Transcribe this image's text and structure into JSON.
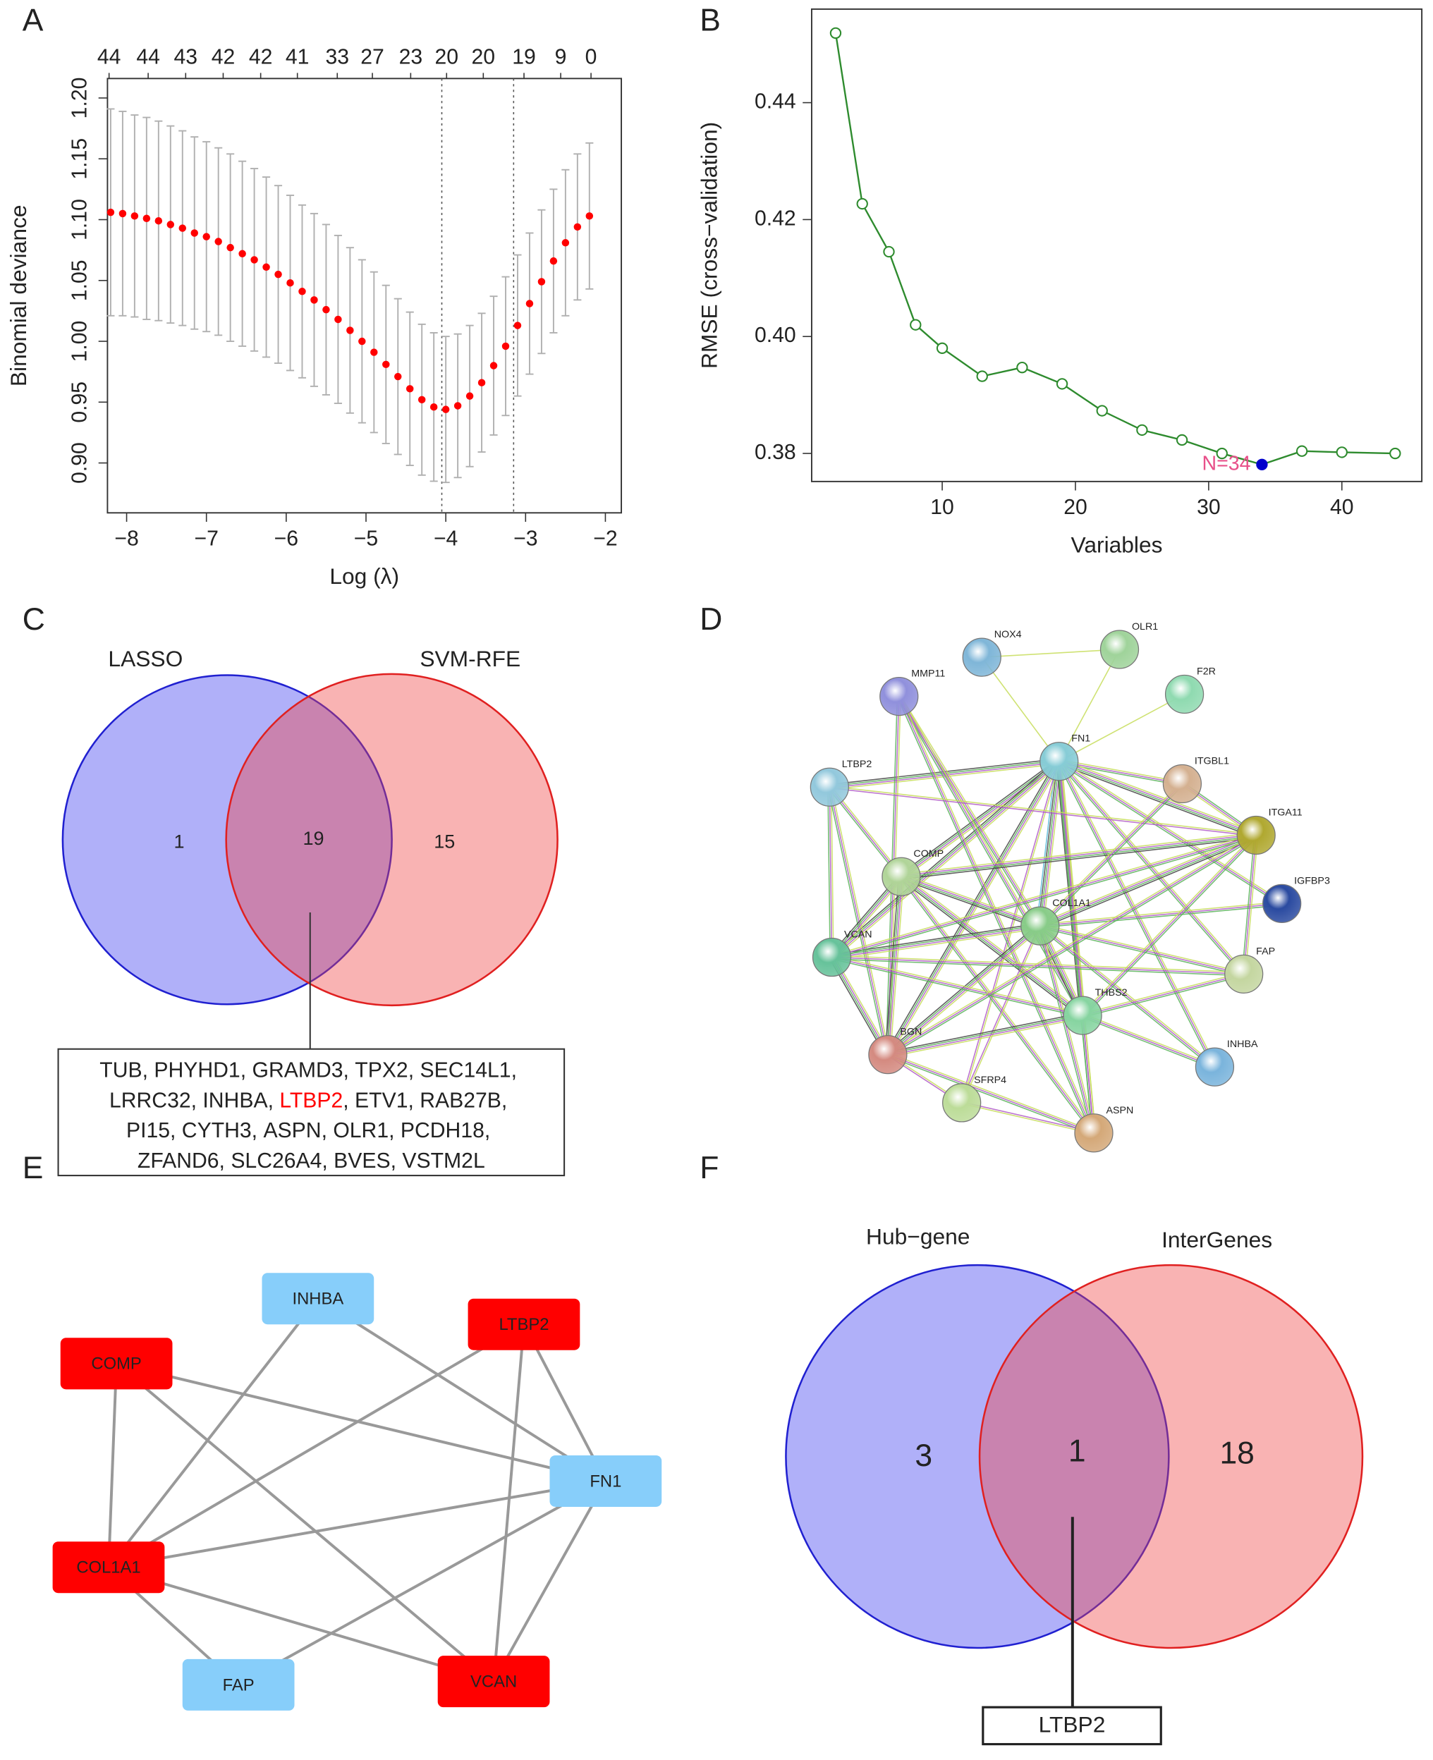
{
  "panel_labels": [
    "A",
    "B",
    "C",
    "D",
    "E",
    "F"
  ],
  "chart_data": [
    {
      "type": "errorbar",
      "xlabel": "Log (λ)",
      "ylabel": "Binomial deviance",
      "x": [
        -8.2,
        -8.05,
        -7.9,
        -7.75,
        -7.6,
        -7.45,
        -7.3,
        -7.15,
        -7.0,
        -6.85,
        -6.7,
        -6.55,
        -6.4,
        -6.25,
        -6.1,
        -5.95,
        -5.8,
        -5.65,
        -5.5,
        -5.35,
        -5.2,
        -5.05,
        -4.9,
        -4.75,
        -4.6,
        -4.45,
        -4.3,
        -4.15,
        -4.0,
        -3.85,
        -3.7,
        -3.55,
        -3.4,
        -3.25,
        -3.1,
        -2.95,
        -2.8,
        -2.65,
        -2.5,
        -2.35,
        -2.2
      ],
      "values": [
        1.106,
        1.105,
        1.103,
        1.101,
        1.099,
        1.096,
        1.093,
        1.089,
        1.086,
        1.082,
        1.077,
        1.072,
        1.067,
        1.061,
        1.055,
        1.048,
        1.041,
        1.034,
        1.026,
        1.018,
        1.009,
        1.0,
        0.991,
        0.981,
        0.971,
        0.961,
        0.952,
        0.946,
        0.944,
        0.947,
        0.955,
        0.966,
        0.98,
        0.996,
        1.013,
        1.031,
        1.049,
        1.066,
        1.081,
        1.094,
        1.103
      ],
      "errors": [
        0.085,
        0.084,
        0.083,
        0.083,
        0.082,
        0.081,
        0.08,
        0.079,
        0.078,
        0.077,
        0.077,
        0.076,
        0.075,
        0.074,
        0.073,
        0.072,
        0.071,
        0.071,
        0.07,
        0.069,
        0.068,
        0.067,
        0.066,
        0.065,
        0.064,
        0.063,
        0.062,
        0.061,
        0.06,
        0.059,
        0.058,
        0.057,
        0.057,
        0.057,
        0.058,
        0.058,
        0.059,
        0.059,
        0.06,
        0.06,
        0.06
      ],
      "color": "#ff0000",
      "error_color": "#b0b0b0",
      "xlim": [
        -8.24,
        -1.8
      ],
      "ylim": [
        0.859,
        1.216
      ],
      "xticks": [
        {
          "value": -8,
          "label": "−8"
        },
        {
          "value": -7,
          "label": "−7"
        },
        {
          "value": -6,
          "label": "−6"
        },
        {
          "value": -5,
          "label": "−5"
        },
        {
          "value": -4,
          "label": "−4"
        },
        {
          "value": -3,
          "label": "−3"
        },
        {
          "value": -2,
          "label": "−2"
        }
      ],
      "yticks": [
        {
          "value": 0.9,
          "label": "0.90"
        },
        0.95,
        {
          "value": 1,
          "label": "1.00"
        },
        1.05,
        {
          "value": 1.1,
          "label": "1.10"
        },
        1.15,
        {
          "value": 1.2,
          "label": "1.20"
        }
      ],
      "top_ticks": [
        {
          "value": -8.22,
          "label": "44"
        },
        {
          "value": -7.73,
          "label": "44"
        },
        {
          "value": -7.26,
          "label": "43"
        },
        {
          "value": -6.79,
          "label": "42"
        },
        {
          "value": -6.32,
          "label": "42"
        },
        {
          "value": -5.86,
          "label": "41"
        },
        {
          "value": -5.36,
          "label": "33"
        },
        {
          "value": -4.92,
          "label": "27"
        },
        {
          "value": -4.44,
          "label": "23"
        },
        {
          "value": -3.99,
          "label": "20"
        },
        {
          "value": -3.53,
          "label": "20"
        },
        {
          "value": -3.02,
          "label": "19"
        },
        {
          "value": -2.56,
          "label": "9"
        },
        {
          "value": -2.18,
          "label": "0"
        }
      ],
      "vlines": [
        -4.05,
        -3.15
      ]
    },
    {
      "type": "line",
      "xlabel": "Variables",
      "ylabel": "RMSE (cross−validation)",
      "x": [
        2,
        4,
        6,
        8,
        10,
        13,
        16,
        19,
        22,
        25,
        28,
        31,
        34,
        37,
        40,
        44
      ],
      "values": [
        0.4519,
        0.4227,
        0.4145,
        0.402,
        0.398,
        0.3932,
        0.3947,
        0.3919,
        0.3873,
        0.384,
        0.3823,
        0.38,
        0.3781,
        0.3804,
        0.3802,
        0.38
      ],
      "color": "#2e8b2e",
      "highlight_index": 12,
      "highlight_color": "#0000cc",
      "annotation": "N=34",
      "annotation_color": "#e8508a",
      "xlim": [
        0.2,
        46
      ],
      "ylim": [
        0.3752,
        0.456
      ],
      "xticks": [
        10,
        20,
        30,
        40
      ],
      "yticks": [
        0.38,
        {
          "value": 0.4,
          "label": "0.40"
        },
        0.42,
        0.44
      ]
    }
  ],
  "venn_c": {
    "sets": [
      {
        "name": "LASSO",
        "color": "#3a3af0",
        "stroke": "#2020d0"
      },
      {
        "name": "SVM-RFE",
        "color": "#f04040",
        "stroke": "#e02020"
      }
    ],
    "counts": [
      1,
      19,
      15
    ],
    "gene_rows": [
      [
        "TUB",
        "PHYHD1",
        "GRAMD3",
        "TPX2",
        "SEC14L1"
      ],
      [
        "LRRC32",
        "INHBA",
        "LTBP2",
        "ETV1",
        "RAB27B"
      ],
      [
        "PI15",
        "CYTH3",
        "ASPN",
        "OLR1",
        "PCDH18"
      ],
      [
        "ZFAND6",
        "SLC26A4",
        "BVES",
        "VSTM2L"
      ]
    ],
    "separator": ", ",
    "highlight": {
      "row": 1,
      "col": 2,
      "color": "#ff0000"
    }
  },
  "network_d": {
    "nodes": [
      {
        "label": "NOX4",
        "color": "#7fb6d8"
      },
      {
        "label": "OLR1",
        "color": "#9fd39a"
      },
      {
        "label": "F2R",
        "color": "#8fdab0"
      },
      {
        "label": "MMP11",
        "color": "#9090dc"
      },
      {
        "label": "FN1",
        "color": "#86ccd6"
      },
      {
        "label": "ITGBL1",
        "color": "#d4b090"
      },
      {
        "label": "LTBP2",
        "color": "#92c8dc"
      },
      {
        "label": "ITGA11",
        "color": "#b0a830"
      },
      {
        "label": "COMP",
        "color": "#b0d498"
      },
      {
        "label": "IGFBP3",
        "color": "#2a4aa0"
      },
      {
        "label": "COL1A1",
        "color": "#88cc88"
      },
      {
        "label": "VCAN",
        "color": "#66c29a"
      },
      {
        "label": "FAP",
        "color": "#c4d6a0"
      },
      {
        "label": "THBS2",
        "color": "#86d4a0"
      },
      {
        "label": "BGN",
        "color": "#d48a80"
      },
      {
        "label": "INHBA",
        "color": "#7ab4dc"
      },
      {
        "label": "SFRP4",
        "color": "#bcdc98"
      },
      {
        "label": "ASPN",
        "color": "#d4a878"
      }
    ],
    "edges": [
      [
        0,
        4,
        1
      ],
      [
        1,
        4,
        1
      ],
      [
        2,
        4,
        1
      ],
      [
        0,
        1,
        1
      ],
      [
        4,
        5,
        3
      ],
      [
        4,
        7,
        4
      ],
      [
        4,
        9,
        3
      ],
      [
        4,
        6,
        4
      ],
      [
        4,
        8,
        4
      ],
      [
        4,
        10,
        5
      ],
      [
        4,
        11,
        4
      ],
      [
        4,
        12,
        3
      ],
      [
        4,
        13,
        4
      ],
      [
        4,
        14,
        4
      ],
      [
        4,
        15,
        3
      ],
      [
        4,
        17,
        3
      ],
      [
        4,
        16,
        2
      ],
      [
        3,
        10,
        3
      ],
      [
        3,
        13,
        3
      ],
      [
        3,
        17,
        3
      ],
      [
        3,
        14,
        3
      ],
      [
        6,
        11,
        3
      ],
      [
        6,
        8,
        3
      ],
      [
        6,
        14,
        3
      ],
      [
        6,
        7,
        2
      ],
      [
        8,
        7,
        4
      ],
      [
        8,
        10,
        4
      ],
      [
        8,
        11,
        4
      ],
      [
        8,
        14,
        4
      ],
      [
        8,
        13,
        4
      ],
      [
        8,
        17,
        3
      ],
      [
        10,
        7,
        4
      ],
      [
        10,
        9,
        3
      ],
      [
        10,
        11,
        4
      ],
      [
        10,
        14,
        4
      ],
      [
        10,
        13,
        4
      ],
      [
        10,
        17,
        3
      ],
      [
        10,
        12,
        3
      ],
      [
        10,
        16,
        2
      ],
      [
        10,
        15,
        3
      ],
      [
        10,
        5,
        3
      ],
      [
        11,
        13,
        3
      ],
      [
        11,
        14,
        4
      ],
      [
        11,
        7,
        3
      ],
      [
        11,
        12,
        3
      ],
      [
        13,
        14,
        4
      ],
      [
        13,
        17,
        3
      ],
      [
        13,
        15,
        3
      ],
      [
        13,
        7,
        3
      ],
      [
        13,
        12,
        3
      ],
      [
        14,
        17,
        3
      ],
      [
        14,
        16,
        2
      ],
      [
        14,
        7,
        3
      ],
      [
        7,
        5,
        3
      ],
      [
        7,
        12,
        3
      ],
      [
        17,
        16,
        2
      ]
    ],
    "edge_colors": [
      "#c7dd5a",
      "#b05bc8",
      "#5bb35b",
      "#444444",
      "#57b8d8"
    ]
  },
  "network_e": {
    "nodes": [
      {
        "label": "INHBA",
        "color": "#87cefa"
      },
      {
        "label": "LTBP2",
        "color": "#ff0000"
      },
      {
        "label": "COMP",
        "color": "#ff0000"
      },
      {
        "label": "FN1",
        "color": "#87cefa"
      },
      {
        "label": "COL1A1",
        "color": "#ff0000"
      },
      {
        "label": "FAP",
        "color": "#87cefa"
      },
      {
        "label": "VCAN",
        "color": "#ff0000"
      }
    ],
    "edges": [
      [
        2,
        3
      ],
      [
        2,
        6
      ],
      [
        2,
        4
      ],
      [
        0,
        4
      ],
      [
        0,
        3
      ],
      [
        1,
        4
      ],
      [
        1,
        3
      ],
      [
        1,
        6
      ],
      [
        3,
        4
      ],
      [
        3,
        5
      ],
      [
        3,
        6
      ],
      [
        4,
        6
      ],
      [
        4,
        5
      ]
    ],
    "edge_color": "#999999"
  },
  "venn_f": {
    "sets": [
      {
        "name": "Hub−gene",
        "color": "#3a3af0",
        "stroke": "#2020d0"
      },
      {
        "name": "InterGenes",
        "color": "#f04040",
        "stroke": "#e02020"
      }
    ],
    "counts": [
      3,
      1,
      18
    ],
    "box": "LTBP2"
  }
}
